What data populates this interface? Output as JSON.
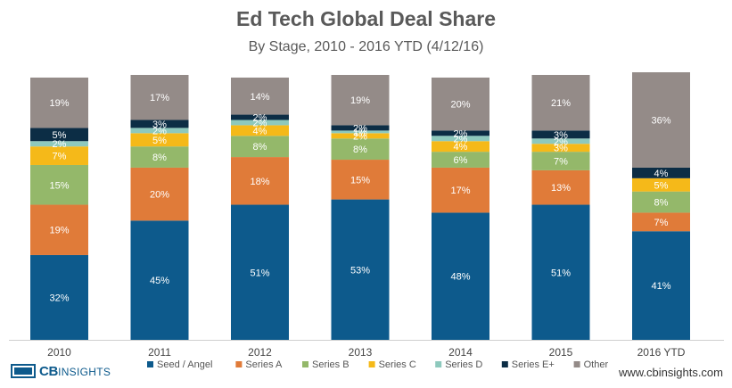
{
  "title": "Ed Tech Global Deal Share",
  "subtitle": "By Stage, 2010 - 2016 YTD (4/12/16)",
  "logo": {
    "brand": "CB",
    "name": "INSIGHTS"
  },
  "website": "www.cbinsights.com",
  "chart_data": {
    "type": "bar",
    "stacked": true,
    "percent": true,
    "title": "Ed Tech Global Deal Share",
    "subtitle": "By Stage, 2010 - 2016 YTD (4/12/16)",
    "categories": [
      "2010",
      "2011",
      "2012",
      "2013",
      "2014",
      "2015",
      "2016 YTD"
    ],
    "ylim": [
      0,
      100
    ],
    "legend_position": "bottom",
    "series": [
      {
        "name": "Seed / Angel",
        "color": "#0d5a8c",
        "values": [
          32,
          45,
          51,
          53,
          48,
          51,
          41
        ]
      },
      {
        "name": "Series A",
        "color": "#e07b39",
        "values": [
          19,
          20,
          18,
          15,
          17,
          13,
          7
        ]
      },
      {
        "name": "Series B",
        "color": "#94b86a",
        "values": [
          15,
          8,
          8,
          8,
          6,
          7,
          8
        ]
      },
      {
        "name": "Series C",
        "color": "#f5b919",
        "values": [
          7,
          5,
          4,
          2,
          4,
          3,
          5
        ]
      },
      {
        "name": "Series D",
        "color": "#8ec9bd",
        "values": [
          2,
          2,
          2,
          1,
          2,
          2,
          0
        ]
      },
      {
        "name": "Series E+",
        "color": "#0c2d45",
        "values": [
          5,
          3,
          2,
          2,
          2,
          3,
          4
        ]
      },
      {
        "name": "Other",
        "color": "#948b88",
        "values": [
          19,
          17,
          14,
          19,
          20,
          21,
          36
        ]
      }
    ]
  }
}
